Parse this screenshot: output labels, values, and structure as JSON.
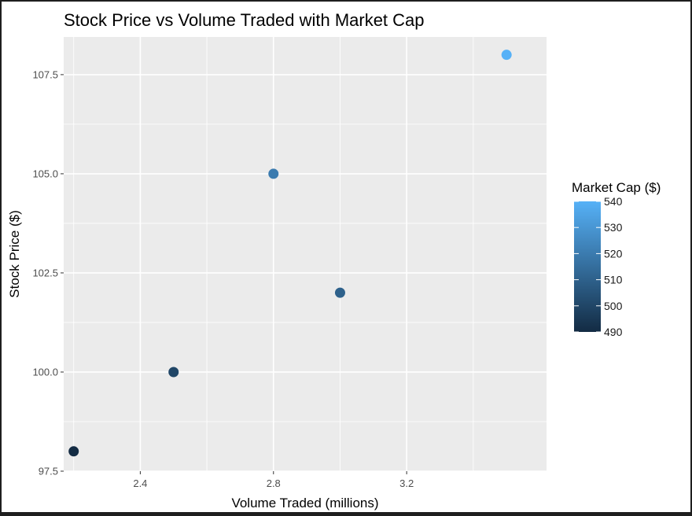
{
  "chart_data": {
    "type": "scatter",
    "title": "Stock Price vs Volume Traded with Market Cap",
    "xlabel": "Volume Traded (millions)",
    "ylabel": "Stock Price ($)",
    "xlim": [
      2.17,
      3.62
    ],
    "ylim": [
      97.5,
      108.45
    ],
    "x_ticks": [
      "2.4",
      "2.8",
      "3.2"
    ],
    "y_ticks": [
      "97.5",
      "100.0",
      "102.5",
      "105.0",
      "107.5"
    ],
    "x_tick_values": [
      2.4,
      2.8,
      3.2
    ],
    "y_tick_values": [
      97.5,
      100.0,
      102.5,
      105.0,
      107.5
    ],
    "grid": true,
    "points": [
      {
        "x": 2.2,
        "y": 98.0,
        "market_cap": 490
      },
      {
        "x": 2.5,
        "y": 100.0,
        "market_cap": 500
      },
      {
        "x": 2.8,
        "y": 105.0,
        "market_cap": 520
      },
      {
        "x": 3.0,
        "y": 102.0,
        "market_cap": 510
      },
      {
        "x": 3.5,
        "y": 108.0,
        "market_cap": 540
      }
    ],
    "color_scale": {
      "title": "Market Cap ($)",
      "min": 490,
      "max": 540,
      "low_color": "#132B43",
      "high_color": "#56B1F7",
      "ticks": [
        "490",
        "500",
        "510",
        "520",
        "530",
        "540"
      ],
      "tick_values": [
        490,
        500,
        510,
        520,
        530,
        540
      ],
      "placement": "right"
    },
    "panel_color": "#EBEBEB",
    "grid_color": "#FFFFFF"
  }
}
